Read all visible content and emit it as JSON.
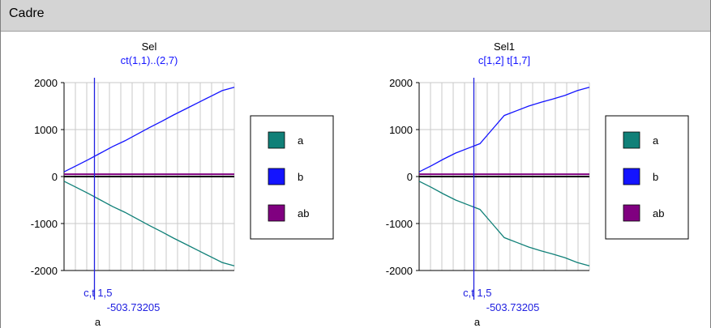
{
  "window": {
    "title": "Cadre"
  },
  "colors": {
    "a": "#108078",
    "b": "#1414ff",
    "ab": "#800080",
    "cursor": "#2020e0",
    "grid": "#c8c8c8",
    "subtitle": "#1414ff"
  },
  "chart_data": [
    {
      "type": "line",
      "title": "Sel",
      "subtitle": "ct(1,1)..(2,7)",
      "xlabel": "a",
      "ylim": [
        -2000,
        2000
      ],
      "yticks": [
        "2000",
        "1000",
        "0",
        "-1000",
        "-2000"
      ],
      "grid": true,
      "legend_position": "right",
      "x": [
        0,
        1,
        2,
        3,
        4,
        5,
        6,
        7,
        8,
        9,
        10,
        11,
        12,
        13,
        14
      ],
      "series": [
        {
          "name": "a",
          "color": "#108078",
          "values": [
            -100,
            -230,
            -360,
            -500,
            -640,
            -760,
            -900,
            -1040,
            -1170,
            -1310,
            -1440,
            -1570,
            -1700,
            -1830,
            -1900
          ]
        },
        {
          "name": "b",
          "color": "#1414ff",
          "values": [
            100,
            230,
            360,
            500,
            640,
            760,
            900,
            1040,
            1170,
            1310,
            1440,
            1570,
            1700,
            1830,
            1900
          ]
        },
        {
          "name": "ab",
          "color": "#800080",
          "values": [
            50,
            50,
            50,
            50,
            50,
            50,
            50,
            50,
            50,
            50,
            50,
            50,
            50,
            50,
            50
          ]
        }
      ],
      "cursor": {
        "x": 2.5,
        "label": "c,t 1,5",
        "value": "-503.73205"
      }
    },
    {
      "type": "line",
      "title": "Sel1",
      "subtitle": "c[1,2] t[1,7]",
      "xlabel": "a",
      "ylim": [
        -2000,
        2000
      ],
      "yticks": [
        "2000",
        "1000",
        "0",
        "-1000",
        "-2000"
      ],
      "grid": true,
      "legend_position": "right",
      "x": [
        0,
        1,
        2,
        3,
        4,
        5,
        6,
        7,
        8,
        9,
        10,
        11,
        12,
        13,
        14
      ],
      "series": [
        {
          "name": "a",
          "color": "#108078",
          "values": [
            -100,
            -230,
            -370,
            -500,
            -600,
            -700,
            -1000,
            -1300,
            -1400,
            -1500,
            -1580,
            -1650,
            -1730,
            -1830,
            -1900
          ]
        },
        {
          "name": "b",
          "color": "#1414ff",
          "values": [
            100,
            230,
            370,
            500,
            600,
            700,
            1000,
            1300,
            1400,
            1500,
            1580,
            1650,
            1730,
            1830,
            1900
          ]
        },
        {
          "name": "ab",
          "color": "#800080",
          "values": [
            50,
            50,
            50,
            50,
            50,
            50,
            50,
            50,
            50,
            50,
            50,
            50,
            50,
            50,
            50
          ]
        }
      ],
      "cursor": {
        "x": 4.5,
        "label": "c,t 1,5",
        "value": "-503.73205"
      }
    }
  ]
}
